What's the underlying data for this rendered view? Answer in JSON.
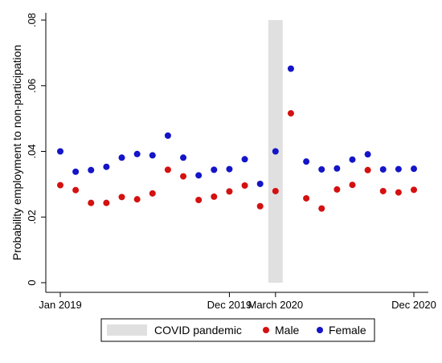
{
  "chart_data": {
    "type": "scatter",
    "title": "",
    "xlabel": "",
    "ylabel": "Probability employment to non-participation",
    "ylim": [
      0,
      0.08
    ],
    "yticks": [
      {
        "value": 0,
        "label": "0"
      },
      {
        "value": 0.02,
        "label": ".02"
      },
      {
        "value": 0.04,
        "label": ".04"
      },
      {
        "value": 0.06,
        "label": ".06"
      },
      {
        "value": 0.08,
        "label": ".08"
      }
    ],
    "x_periods": [
      "Jan 2019",
      "Feb 2019",
      "Mar 2019",
      "Apr 2019",
      "May 2019",
      "Jun 2019",
      "Jul 2019",
      "Aug 2019",
      "Sep 2019",
      "Oct 2019",
      "Nov 2019",
      "Dec 2019",
      "Jan 2020",
      "Feb 2020",
      "Mar 2020",
      "Apr 2020",
      "May 2020",
      "Jun 2020",
      "Jul 2020",
      "Aug 2020",
      "Sep 2020",
      "Oct 2020",
      "Nov 2020",
      "Dec 2020"
    ],
    "xticks": [
      {
        "index": 0,
        "label": "Jan 2019"
      },
      {
        "index": 11,
        "label": "Dec 2019"
      },
      {
        "index": 14,
        "label": "March 2020"
      },
      {
        "index": 23,
        "label": "Dec 2020"
      }
    ],
    "shaded_region": {
      "label": "COVID pandemic",
      "period": "Mar 2020",
      "color": "#e0e0e0"
    },
    "series": [
      {
        "name": "Male",
        "color": "#d41010",
        "values": [
          0.0297,
          0.0282,
          0.0243,
          0.0243,
          0.0261,
          0.0254,
          0.0272,
          0.0344,
          0.0324,
          0.0252,
          0.0262,
          0.0278,
          0.0296,
          0.0233,
          0.0279,
          0.0516,
          0.0257,
          0.0226,
          0.0284,
          0.0298,
          0.0343,
          0.0279,
          0.0275,
          0.0283
        ]
      },
      {
        "name": "Female",
        "color": "#1414c8",
        "values": [
          0.04,
          0.0338,
          0.0343,
          0.0353,
          0.0381,
          0.0392,
          0.0388,
          0.0448,
          0.0381,
          0.0327,
          0.0344,
          0.0346,
          0.0376,
          0.0301,
          0.04,
          0.0652,
          0.0369,
          0.0345,
          0.0348,
          0.0375,
          0.0391,
          0.0345,
          0.0346,
          0.0347
        ]
      }
    ],
    "legend_position": "bottom"
  }
}
